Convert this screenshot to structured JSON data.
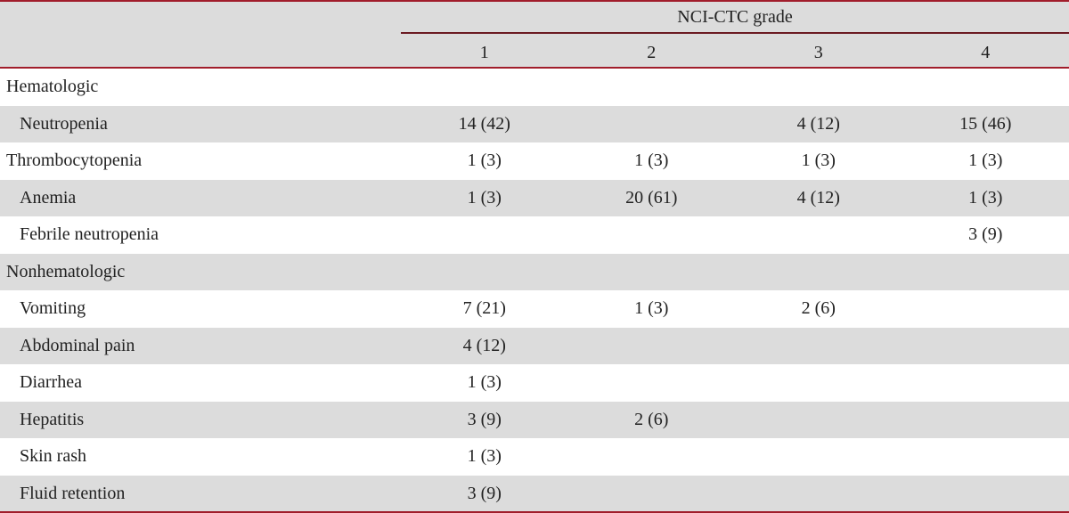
{
  "table": {
    "header": {
      "group": "NCI-CTC grade",
      "columns": [
        "1",
        "2",
        "3",
        "4"
      ]
    },
    "rows": [
      {
        "label": "Hematologic",
        "indent": false
      },
      {
        "label": "Neutropenia",
        "indent": true,
        "cells": [
          "14 (42)",
          null,
          "4 (12)",
          "15 (46)"
        ]
      },
      {
        "label": "Thrombocytopenia",
        "indent": false,
        "cells": [
          "1 (3)",
          "1 (3)",
          "1 (3)",
          "1 (3)"
        ]
      },
      {
        "label": "Anemia",
        "indent": true,
        "cells": [
          "1 (3)",
          "20 (61)",
          "4 (12)",
          "1 (3)"
        ]
      },
      {
        "label": "Febrile neutropenia",
        "indent": true,
        "cells": [
          null,
          null,
          null,
          "3 (9)"
        ]
      },
      {
        "label": "Nonhematologic",
        "indent": false
      },
      {
        "label": "Vomiting",
        "indent": true,
        "cells": [
          "7 (21)",
          "1 (3)",
          "2 (6)",
          null
        ]
      },
      {
        "label": "Abdominal pain",
        "indent": true,
        "cells": [
          "4 (12)",
          null,
          null,
          null
        ]
      },
      {
        "label": "Diarrhea",
        "indent": true,
        "cells": [
          "1 (3)",
          null,
          null,
          null
        ]
      },
      {
        "label": "Hepatitis",
        "indent": true,
        "cells": [
          "3 (9)",
          "2 (6)",
          null,
          null
        ]
      },
      {
        "label": "Skin rash",
        "indent": true,
        "cells": [
          "1 (3)",
          null,
          null,
          null
        ]
      },
      {
        "label": "Fluid retention",
        "indent": true,
        "cells": [
          "3 (9)",
          null,
          null,
          null
        ]
      }
    ]
  }
}
